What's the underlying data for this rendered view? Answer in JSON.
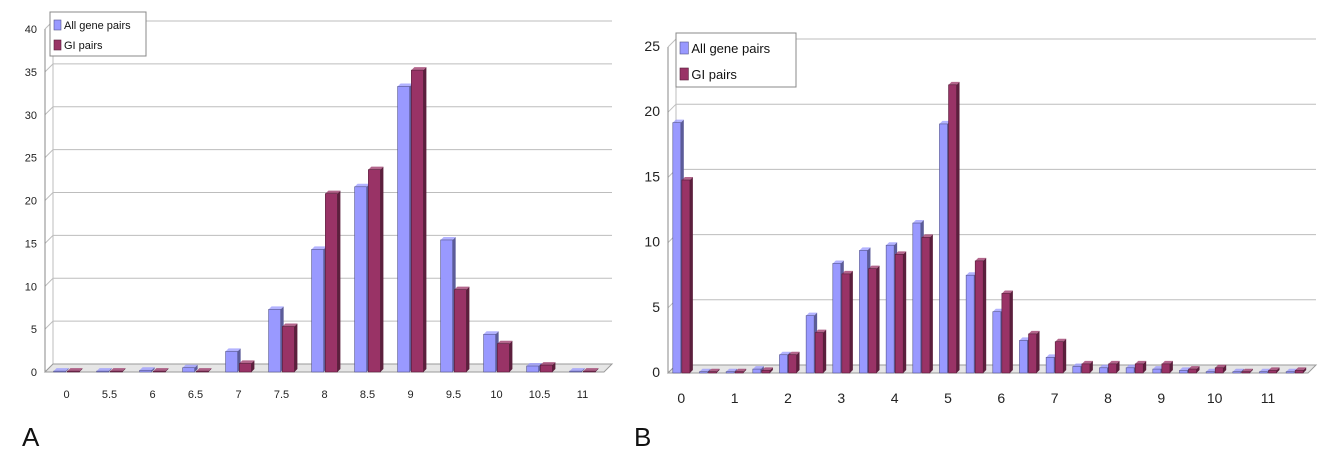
{
  "panels": {
    "a": {
      "label": "A"
    },
    "b": {
      "label": "B"
    }
  },
  "chart_data": [
    {
      "type": "bar",
      "panel": "A",
      "categories": [
        "0",
        "5.5",
        "6",
        "6.5",
        "7",
        "7.5",
        "8",
        "8.5",
        "9",
        "9.5",
        "10",
        "10.5",
        "11"
      ],
      "series": [
        {
          "name": "All gene pairs",
          "color": "#9999ff",
          "values": [
            0.1,
            0.1,
            0.2,
            0.5,
            2.4,
            7.3,
            14.3,
            21.6,
            33.3,
            15.4,
            4.4,
            0.7,
            0.1
          ]
        },
        {
          "name": "GI pairs",
          "color": "#993366",
          "values": [
            0.1,
            0.1,
            0.1,
            0.1,
            1.0,
            5.3,
            20.8,
            23.6,
            35.2,
            9.6,
            3.3,
            0.8,
            0.1
          ]
        }
      ],
      "ylim": [
        0,
        40
      ],
      "yticks": [
        0,
        5,
        10,
        15,
        20,
        25,
        30,
        35,
        40
      ],
      "grid": true,
      "legend": "top-left",
      "xlabel": "",
      "ylabel": ""
    },
    {
      "type": "bar",
      "panel": "B",
      "categories": [
        "0",
        "0.5",
        "1",
        "1.5",
        "2",
        "2.5",
        "3",
        "3.5",
        "4",
        "4.5",
        "5",
        "5.5",
        "6",
        "6.5",
        "7",
        "7.5",
        "8",
        "8.5",
        "9",
        "9.5",
        "10",
        "10.5",
        "11",
        "11.5"
      ],
      "tick_labels": [
        "0",
        "1",
        "2",
        "3",
        "4",
        "5",
        "6",
        "7",
        "8",
        "9",
        "10",
        "11"
      ],
      "series": [
        {
          "name": "All gene pairs",
          "color": "#9999ff",
          "values": [
            19.2,
            0.1,
            0.1,
            0.3,
            1.4,
            4.4,
            8.4,
            9.4,
            9.8,
            11.5,
            19.1,
            7.5,
            4.7,
            2.5,
            1.2,
            0.5,
            0.4,
            0.4,
            0.3,
            0.2,
            0.1,
            0.1,
            0.1,
            0.1
          ]
        },
        {
          "name": "GI pairs",
          "color": "#993366",
          "values": [
            14.8,
            0.1,
            0.1,
            0.2,
            1.4,
            3.1,
            7.6,
            8.0,
            9.1,
            10.4,
            22.1,
            8.6,
            6.1,
            3.0,
            2.4,
            0.7,
            0.7,
            0.7,
            0.7,
            0.3,
            0.4,
            0.1,
            0.2,
            0.2
          ]
        }
      ],
      "ylim": [
        0,
        25
      ],
      "yticks": [
        0,
        5,
        10,
        15,
        20,
        25
      ],
      "grid": true,
      "legend": "top-left",
      "xlabel": "",
      "ylabel": ""
    }
  ]
}
